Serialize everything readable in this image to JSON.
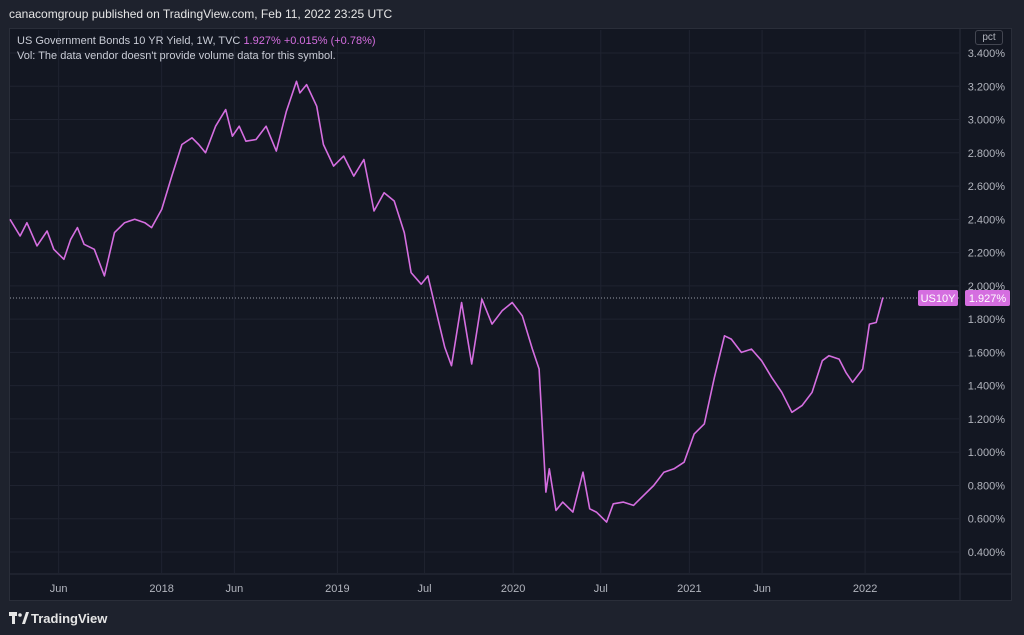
{
  "header": {
    "publish_line": "canacomgroup published on TradingView.com, Feb 11, 2022 23:25 UTC"
  },
  "legend": {
    "symbol_desc": "US Government Bonds 10 YR Yield, 1W, TVC",
    "last_value": "1.927%",
    "change": "+0.015% (+0.78%)",
    "vol_note": "Vol: The data vendor doesn't provide volume data for this symbol."
  },
  "price_scale": {
    "unit_label": "pct",
    "ticks": [
      "3.400%",
      "3.200%",
      "3.000%",
      "2.800%",
      "2.600%",
      "2.400%",
      "2.200%",
      "2.000%",
      "1.800%",
      "1.600%",
      "1.400%",
      "1.200%",
      "1.000%",
      "0.800%",
      "0.600%",
      "0.400%"
    ],
    "symbol_tag": "US10Y",
    "last_price_tag": "1.927%"
  },
  "footer": {
    "brand": "TradingView"
  },
  "colors": {
    "line": "#d56ee0",
    "background": "#131722",
    "grid": "#1f2330",
    "axis_text": "#b2b5be"
  },
  "chart_data": {
    "type": "line",
    "title": "US Government Bonds 10 YR Yield, 1W, TVC",
    "ylabel": "pct",
    "ylim": [
      0.3,
      3.5
    ],
    "y_ticks": [
      3.4,
      3.2,
      3.0,
      2.8,
      2.6,
      2.4,
      2.2,
      2.0,
      1.8,
      1.6,
      1.4,
      1.2,
      1.0,
      0.8,
      0.6,
      0.4
    ],
    "x_ticks": [
      {
        "label": "Jun",
        "x": "2017-06-01"
      },
      {
        "label": "2018",
        "x": "2018-01-01"
      },
      {
        "label": "Jun",
        "x": "2018-06-01"
      },
      {
        "label": "2019",
        "x": "2019-01-01"
      },
      {
        "label": "Jul",
        "x": "2019-07-01"
      },
      {
        "label": "2020",
        "x": "2020-01-01"
      },
      {
        "label": "Jul",
        "x": "2020-07-01"
      },
      {
        "label": "2021",
        "x": "2021-01-01"
      },
      {
        "label": "Jun",
        "x": "2021-06-01"
      },
      {
        "label": "2022",
        "x": "2022-01-01"
      }
    ],
    "x_range": [
      "2017-02-20",
      "2022-07-15"
    ],
    "last_value": 1.927,
    "series": [
      {
        "x": [
          "2017-02-20",
          "2017-03-13",
          "2017-03-27",
          "2017-04-17",
          "2017-05-08",
          "2017-05-22",
          "2017-06-12",
          "2017-06-26",
          "2017-07-10",
          "2017-07-24",
          "2017-08-14",
          "2017-09-04",
          "2017-09-25",
          "2017-10-16",
          "2017-11-06",
          "2017-11-27",
          "2017-12-11",
          "2018-01-01",
          "2018-01-22",
          "2018-02-12",
          "2018-03-05",
          "2018-03-19",
          "2018-04-02",
          "2018-04-23",
          "2018-05-14",
          "2018-05-28",
          "2018-06-11",
          "2018-06-25",
          "2018-07-16",
          "2018-08-06",
          "2018-08-27",
          "2018-09-17",
          "2018-10-08",
          "2018-10-15",
          "2018-10-29",
          "2018-11-19",
          "2018-12-03",
          "2018-12-24",
          "2019-01-14",
          "2019-02-04",
          "2019-02-25",
          "2019-03-18",
          "2019-04-08",
          "2019-04-29",
          "2019-05-20",
          "2019-06-03",
          "2019-06-24",
          "2019-07-08",
          "2019-07-29",
          "2019-08-12",
          "2019-08-26",
          "2019-09-16",
          "2019-10-07",
          "2019-10-28",
          "2019-11-18",
          "2019-12-09",
          "2019-12-30",
          "2020-01-20",
          "2020-02-10",
          "2020-02-24",
          "2020-03-09",
          "2020-03-16",
          "2020-03-30",
          "2020-04-13",
          "2020-05-04",
          "2020-05-25",
          "2020-06-08",
          "2020-06-22",
          "2020-07-13",
          "2020-07-27",
          "2020-08-17",
          "2020-09-07",
          "2020-09-28",
          "2020-10-19",
          "2020-11-09",
          "2020-11-30",
          "2020-12-21",
          "2021-01-11",
          "2021-02-01",
          "2021-02-22",
          "2021-03-15",
          "2021-03-29",
          "2021-04-19",
          "2021-05-10",
          "2021-05-31",
          "2021-06-21",
          "2021-07-12",
          "2021-08-02",
          "2021-08-23",
          "2021-09-13",
          "2021-10-04",
          "2021-10-18",
          "2021-11-08",
          "2021-11-22",
          "2021-12-06",
          "2021-12-27",
          "2022-01-10",
          "2022-01-24",
          "2022-02-07"
        ],
        "values": [
          2.4,
          2.3,
          2.38,
          2.24,
          2.33,
          2.22,
          2.16,
          2.28,
          2.35,
          2.25,
          2.22,
          2.06,
          2.32,
          2.38,
          2.4,
          2.38,
          2.35,
          2.46,
          2.66,
          2.85,
          2.89,
          2.85,
          2.8,
          2.96,
          3.06,
          2.9,
          2.96,
          2.87,
          2.88,
          2.96,
          2.81,
          3.05,
          3.23,
          3.16,
          3.21,
          3.08,
          2.85,
          2.72,
          2.78,
          2.66,
          2.76,
          2.45,
          2.56,
          2.51,
          2.32,
          2.08,
          2.01,
          2.06,
          1.8,
          1.63,
          1.52,
          1.9,
          1.53,
          1.92,
          1.77,
          1.85,
          1.9,
          1.82,
          1.62,
          1.5,
          0.76,
          0.9,
          0.65,
          0.7,
          0.64,
          0.88,
          0.66,
          0.64,
          0.58,
          0.69,
          0.7,
          0.68,
          0.74,
          0.8,
          0.88,
          0.9,
          0.94,
          1.11,
          1.17,
          1.45,
          1.7,
          1.68,
          1.6,
          1.62,
          1.55,
          1.45,
          1.36,
          1.24,
          1.28,
          1.36,
          1.55,
          1.58,
          1.56,
          1.48,
          1.42,
          1.5,
          1.77,
          1.78,
          1.93
        ]
      }
    ]
  }
}
